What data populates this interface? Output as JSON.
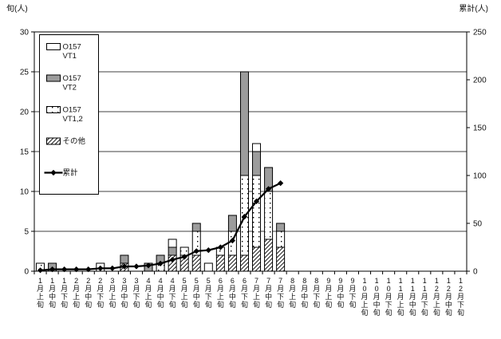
{
  "chart_data": {
    "type": "bar",
    "subtype": "stacked-bars-with-cumulative-line",
    "title": "",
    "left_axis": {
      "title": "旬(人)",
      "min": 0,
      "max": 30,
      "tick_step": 5,
      "ticks": [
        0,
        5,
        10,
        15,
        20,
        25,
        30
      ]
    },
    "right_axis": {
      "title": "累計(人)",
      "min": 0,
      "max": 250,
      "tick_step": 50,
      "ticks": [
        0,
        50,
        100,
        150,
        200,
        250
      ]
    },
    "grid": "horizontal-on",
    "legend_position": "inside-top-left",
    "categories": [
      "1月上旬",
      "1月中旬",
      "1月下旬",
      "2月上旬",
      "2月中旬",
      "2月下旬",
      "3月上旬",
      "3月中旬",
      "3月下旬",
      "4月上旬",
      "4月中旬",
      "4月下旬",
      "5月上旬",
      "5月中旬",
      "5月下旬",
      "6月上旬",
      "6月中旬",
      "6月下旬",
      "7月上旬",
      "7月中旬",
      "7月下旬",
      "8月上旬",
      "8月中旬",
      "8月下旬",
      "9月上旬",
      "9月中旬",
      "9月下旬",
      "10月上旬",
      "10月中旬",
      "10月下旬",
      "11月上旬",
      "11月中旬",
      "11月下旬",
      "12月上旬",
      "12月中旬",
      "12月下旬"
    ],
    "stack_order_bottom_to_top": [
      "その他",
      "O157 VT1,2",
      "O157 VT2",
      "O157 VT1"
    ],
    "series": [
      {
        "name": "O157 VT1",
        "legend_lines": [
          "O157",
          "VT1"
        ],
        "pattern": "white",
        "values": [
          0,
          0,
          0,
          0,
          0,
          1,
          0,
          0,
          0,
          0,
          0,
          1,
          0,
          0,
          1,
          0,
          0,
          0,
          1,
          0,
          0,
          0,
          0,
          0,
          0,
          0,
          0,
          0,
          0,
          0,
          0,
          0,
          0,
          0,
          0,
          0
        ]
      },
      {
        "name": "O157 VT2",
        "legend_lines": [
          "O157",
          "VT2"
        ],
        "pattern": "gray",
        "values": [
          0,
          1,
          0,
          0,
          0,
          0,
          0,
          1,
          0,
          1,
          1,
          1,
          0,
          1,
          0,
          0,
          2,
          13,
          3,
          3,
          1,
          0,
          0,
          0,
          0,
          0,
          0,
          0,
          0,
          0,
          0,
          0,
          0,
          0,
          0,
          0
        ]
      },
      {
        "name": "O157 VT1,2",
        "legend_lines": [
          "O157",
          "VT1,2"
        ],
        "pattern": "dots",
        "values": [
          1,
          0,
          0,
          0,
          0,
          0,
          0,
          0,
          0,
          0,
          1,
          0,
          1,
          3,
          0,
          1,
          3,
          10,
          9,
          6,
          2,
          0,
          0,
          0,
          0,
          0,
          0,
          0,
          0,
          0,
          0,
          0,
          0,
          0,
          0,
          0
        ]
      },
      {
        "name": "その他",
        "legend_lines": [
          "その他"
        ],
        "pattern": "hatch",
        "values": [
          0,
          0,
          0,
          0,
          0,
          0,
          0,
          1,
          0,
          0,
          0,
          2,
          2,
          2,
          0,
          2,
          2,
          2,
          3,
          4,
          3,
          0,
          0,
          0,
          0,
          0,
          0,
          0,
          0,
          0,
          0,
          0,
          0,
          0,
          0,
          0
        ]
      }
    ],
    "line_series": {
      "name": "累計",
      "axis": "right",
      "values": [
        1,
        2,
        2,
        2,
        2,
        3,
        3,
        5,
        5,
        6,
        8,
        12,
        15,
        21,
        22,
        25,
        32,
        57,
        73,
        86,
        92
      ],
      "ends_at_category": "7月下旬"
    },
    "legend_entries": [
      {
        "swatch": "white",
        "lines": [
          "O157",
          "VT1"
        ]
      },
      {
        "swatch": "gray",
        "lines": [
          "O157",
          "VT2"
        ]
      },
      {
        "swatch": "dots",
        "lines": [
          "O157",
          "VT1,2"
        ]
      },
      {
        "swatch": "hatch",
        "lines": [
          "その他"
        ]
      },
      {
        "swatch": "line",
        "lines": [
          "累計"
        ]
      }
    ],
    "colors": {
      "bar_gray": "#9c9c9c",
      "bar_white": "#ffffff",
      "ink": "#000000",
      "background": "#ffffff"
    }
  }
}
